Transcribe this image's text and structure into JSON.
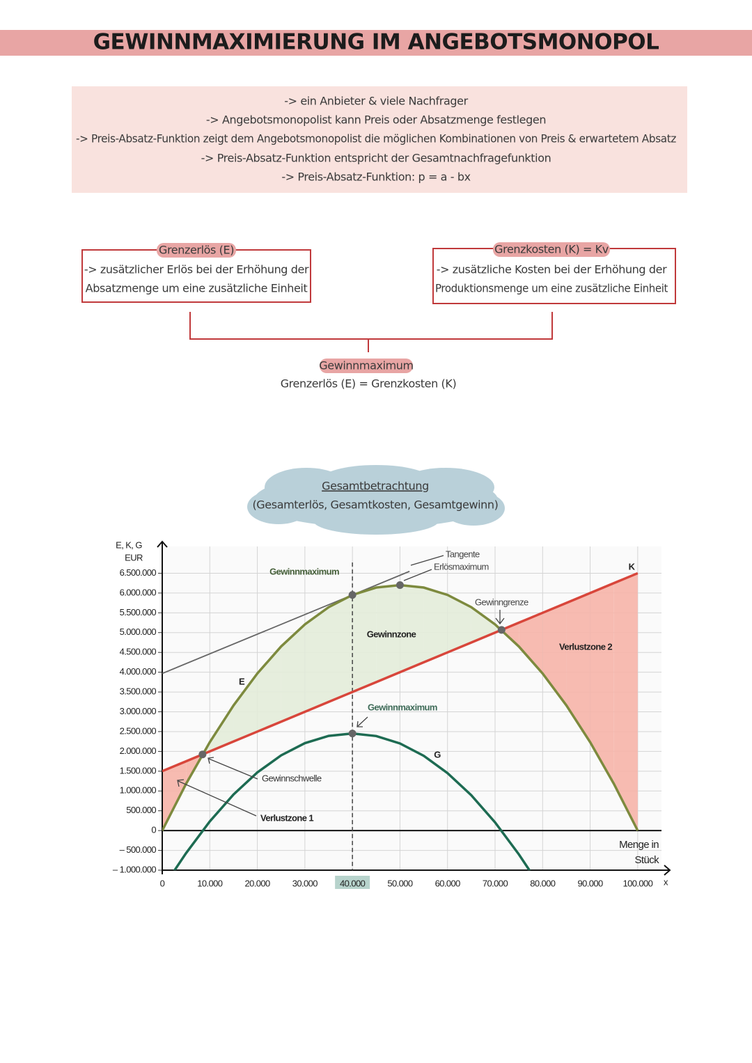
{
  "header": {
    "title": "GEWINNMAXIMIERUNG IM ANGEBOTSMONOPOL"
  },
  "intro": {
    "lines": [
      "-> ein Anbieter & viele Nachfrager",
      "-> Angebotsmonopolist kann Preis oder Absatzmenge festlegen",
      "-> Preis-Absatz-Funktion zeigt dem Angebotsmonopolist die möglichen Kombinationen von Preis & erwartetem Absatz",
      "-> Preis-Absatz-Funktion entspricht der Gesamtnachfragefunktion",
      "-> Preis-Absatz-Funktion: p = a - bx"
    ]
  },
  "boxes": [
    {
      "label": "Grenzerlös (E)",
      "lines": [
        "-> zusätzlicher Erlös bei der Erhöhung der",
        "Absatzmenge um eine zusätzliche Einheit"
      ]
    },
    {
      "label": "Grenzkosten (K) = Kv",
      "lines": [
        "-> zusätzliche Kosten bei der Erhöhung der",
        "Produktionsmenge um eine zusätzliche Einheit"
      ]
    }
  ],
  "result": {
    "label": "Gewinnmaximum",
    "text": "Grenzerlös (E) = Grenzkosten (K)"
  },
  "cloud": {
    "title": "Gesamtbetrachtung",
    "subtitle": "(Gesamterlös, Gesamtkosten, Gesamtgewinn)"
  },
  "chart_data": {
    "type": "line",
    "ylabel_lines": [
      "E, K, G",
      "EUR"
    ],
    "xlabel_lines": [
      "Menge in",
      "Stück"
    ],
    "x_axis_symbol": "x",
    "x": [
      0,
      5000,
      10000,
      15000,
      20000,
      25000,
      30000,
      35000,
      40000,
      45000,
      50000,
      55000,
      60000,
      65000,
      70000,
      75000,
      80000,
      85000,
      90000,
      95000,
      100000
    ],
    "series": [
      {
        "name": "E",
        "color": "#7d8a3e",
        "values": [
          0,
          1178000,
          2232000,
          3162000,
          3968000,
          4650000,
          5208000,
          5642000,
          5952000,
          6138000,
          6200000,
          6138000,
          5952000,
          5642000,
          5208000,
          4650000,
          3968000,
          3162000,
          2232000,
          1178000,
          0
        ]
      },
      {
        "name": "K",
        "color": "#d8463b",
        "values": [
          1500000,
          1750000,
          2000000,
          2250000,
          2500000,
          2750000,
          3000000,
          3250000,
          3500000,
          3750000,
          4000000,
          4250000,
          4500000,
          4750000,
          5000000,
          5250000,
          5500000,
          5750000,
          6000000,
          6250000,
          6500000
        ]
      },
      {
        "name": "G",
        "color": "#1d6b52",
        "x": [
          2500,
          5000,
          10000,
          15000,
          20000,
          25000,
          30000,
          35000,
          40000,
          45000,
          50000,
          55000,
          60000,
          65000,
          70000,
          75000,
          77500
        ],
        "values": [
          -1020000,
          -572000,
          232000,
          912000,
          1468000,
          1900000,
          2208000,
          2392000,
          2452000,
          2388000,
          2200000,
          1888000,
          1452000,
          892000,
          208000,
          -600000,
          -1050000
        ]
      }
    ],
    "tangent": {
      "x": [
        0,
        52000
      ],
      "y": [
        3968000,
        6547000
      ],
      "color": "#666666"
    },
    "zone_colors": {
      "profit": "#e3ecd9",
      "loss": "#f6b4a8"
    },
    "markers": [
      {
        "x": 8476,
        "y": 1924000
      },
      {
        "x": 40000,
        "y": 5952000
      },
      {
        "x": 50000,
        "y": 6200000
      },
      {
        "x": 71363,
        "y": 5068000
      },
      {
        "x": 40000,
        "y": 2452000
      }
    ],
    "highlight_x": 40000,
    "annotations": [
      "Gewinnmaximum",
      "Tangente",
      "Erlösmaximum",
      "Gewinngrenze",
      "Gewinnzone",
      "Verlustzone 2",
      "Gewinnmaximum",
      "Gewinnschwelle",
      "Verlustzone 1"
    ],
    "xlim": [
      0,
      105000
    ],
    "ylim": [
      -1000000,
      7000000
    ],
    "xticks": [
      0,
      {
        "value": 10000,
        "label": "10.000"
      },
      {
        "value": 20000,
        "label": "20.000"
      },
      {
        "value": 30000,
        "label": "30.000"
      },
      {
        "value": 40000,
        "label": "40.000"
      },
      {
        "value": 50000,
        "label": "50.000"
      },
      {
        "value": 60000,
        "label": "60.000"
      },
      {
        "value": 70000,
        "label": "70.000"
      },
      {
        "value": 80000,
        "label": "80.000"
      },
      {
        "value": 90000,
        "label": "90.000"
      },
      {
        "value": 100000,
        "label": "100.000"
      }
    ],
    "yticks": [
      {
        "value": -1000000,
        "label": "– 1.000.000"
      },
      {
        "value": -500000,
        "label": "– 500.000"
      },
      0,
      {
        "value": 500000,
        "label": "500.000"
      },
      {
        "value": 1000000,
        "label": "1.000.000"
      },
      {
        "value": 1500000,
        "label": "1.500.000"
      },
      {
        "value": 2000000,
        "label": "2.000.000"
      },
      {
        "value": 2500000,
        "label": "2.500.000"
      },
      {
        "value": 3000000,
        "label": "3.000.000"
      },
      {
        "value": 3500000,
        "label": "3.500.000"
      },
      {
        "value": 4000000,
        "label": "4.000.000"
      },
      {
        "value": 4500000,
        "label": "4.500.000"
      },
      {
        "value": 5000000,
        "label": "5.000.000"
      },
      {
        "value": 5500000,
        "label": "5.500.000"
      },
      {
        "value": 6000000,
        "label": "6.000.000"
      },
      {
        "value": 6500000,
        "label": "6.500.000"
      }
    ],
    "grid": true
  }
}
